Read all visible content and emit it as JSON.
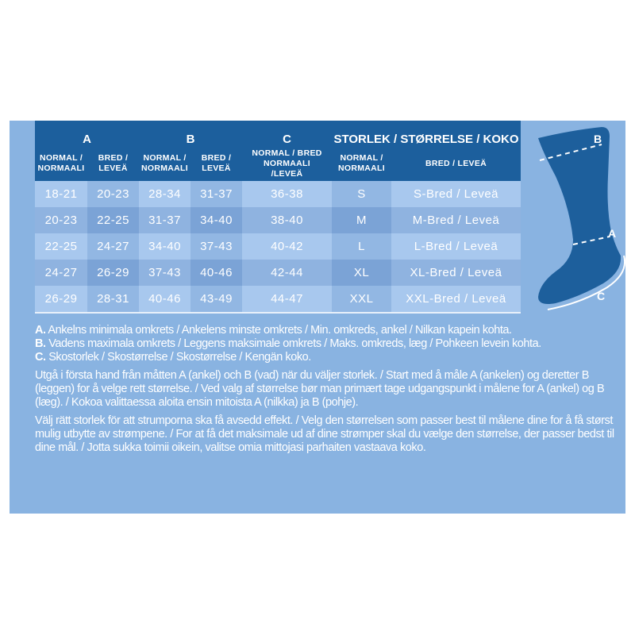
{
  "colors": {
    "header": "#1c5f9d",
    "panel": "#89b3e1",
    "row_light": "#a8c8ee",
    "row_dark": "#8fb3e0",
    "sock": "#1d5f9c"
  },
  "table": {
    "groups": [
      "A",
      "B",
      "C",
      "STORLEK / STØRRELSE / KOKO"
    ],
    "subheaders": [
      "NORMAL / NORMAALI",
      "BRED / LEVEÄ",
      "NORMAL / NORMAALI",
      "BRED / LEVEÄ",
      "NORMAL / BRED NORMAALI /LEVEÄ",
      "NORMAL / NORMAALI",
      "BRED / LEVEÄ"
    ],
    "rows": [
      [
        "18-21",
        "20-23",
        "28-34",
        "31-37",
        "36-38",
        "S",
        "S-Bred / Leveä"
      ],
      [
        "20-23",
        "22-25",
        "31-37",
        "34-40",
        "38-40",
        "M",
        "M-Bred / Leveä"
      ],
      [
        "22-25",
        "24-27",
        "34-40",
        "37-43",
        "40-42",
        "L",
        "L-Bred / Leveä"
      ],
      [
        "24-27",
        "26-29",
        "37-43",
        "40-46",
        "42-44",
        "XL",
        "XL-Bred / Leveä"
      ],
      [
        "26-29",
        "28-31",
        "40-46",
        "43-49",
        "44-47",
        "XXL",
        "XXL-Bred / Leveä"
      ]
    ]
  },
  "sock_labels": {
    "a": "A",
    "b": "B",
    "c": "C"
  },
  "notes": {
    "a_key": "A.",
    "a_text": " Ankelns minimala omkrets / Ankelens minste omkrets / Min. omkreds, ankel / Nilkan kapein kohta.",
    "b_key": "B.",
    "b_text": " Vadens maximala omkrets / Leggens maksimale omkrets / Maks. omkreds, læg / Pohkeen levein kohta.",
    "c_key": "C.",
    "c_text": " Skostorlek / Skostørrelse / Skostørrelse / Kengän koko.",
    "para1": "Utgå i första hand från måtten A (ankel) och B (vad) när du väljer storlek. / Start med å måle A (ankelen) og deretter B (leggen) for å velge rett størrelse. / Ved valg af størrelse bør man primært tage udgangspunkt i målene for A (ankel) og B (læg). / Kokoa valittaessa aloita ensin mitoista A (nilkka) ja B (pohje).",
    "para2": "Välj rätt storlek för att strumporna ska få avsedd effekt. / Velg den størrelsen som passer best til målene dine for å få størst mulig utbytte av strømpene. / For at få det maksimale ud af dine strømper skal du vælge den størrelse, der passer bedst til dine mål. / Jotta sukka toimii oikein, valitse omia mittojasi parhaiten vastaava koko."
  }
}
